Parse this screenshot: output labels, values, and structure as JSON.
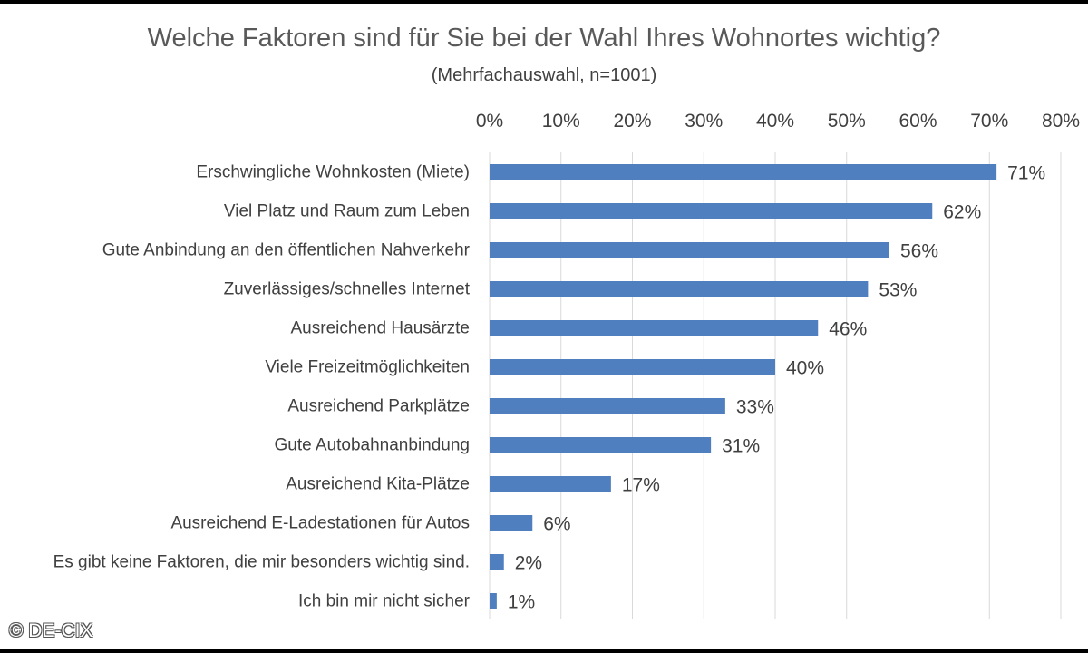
{
  "chart_data": {
    "type": "bar",
    "orientation": "horizontal",
    "title": "Welche Faktoren sind für Sie bei der Wahl Ihres Wohnortes wichtig?",
    "subtitle": "(Mehrfachauswahl, n=1001)",
    "categories": [
      "Erschwingliche Wohnkosten (Miete)",
      "Viel Platz und Raum zum Leben",
      "Gute Anbindung an den öffentlichen Nahverkehr",
      "Zuverlässiges/schnelles Internet",
      "Ausreichend Hausärzte",
      "Viele Freizeitmöglichkeiten",
      "Ausreichend Parkplätze",
      "Gute Autobahnanbindung",
      "Ausreichend Kita-Plätze",
      "Ausreichend E-Ladestationen für Autos",
      "Es gibt keine Faktoren, die mir besonders wichtig sind.",
      "Ich bin mir nicht sicher"
    ],
    "values": [
      71,
      62,
      56,
      53,
      46,
      40,
      33,
      31,
      17,
      6,
      2,
      1
    ],
    "data_labels": [
      "71%",
      "62%",
      "56%",
      "53%",
      "46%",
      "40%",
      "33%",
      "31%",
      "17%",
      "6%",
      "2%",
      "1%"
    ],
    "xlim": [
      0,
      80
    ],
    "x_ticks": [
      0,
      10,
      20,
      30,
      40,
      50,
      60,
      70,
      80
    ],
    "x_tick_labels": [
      "0%",
      "10%",
      "20%",
      "30%",
      "40%",
      "50%",
      "60%",
      "70%",
      "80%"
    ],
    "x_axis_position": "top",
    "grid": true,
    "bar_color": "#4f7fbf",
    "grid_color": "#d9d9d9"
  },
  "footer": {
    "copyright": "© DE-CIX"
  }
}
